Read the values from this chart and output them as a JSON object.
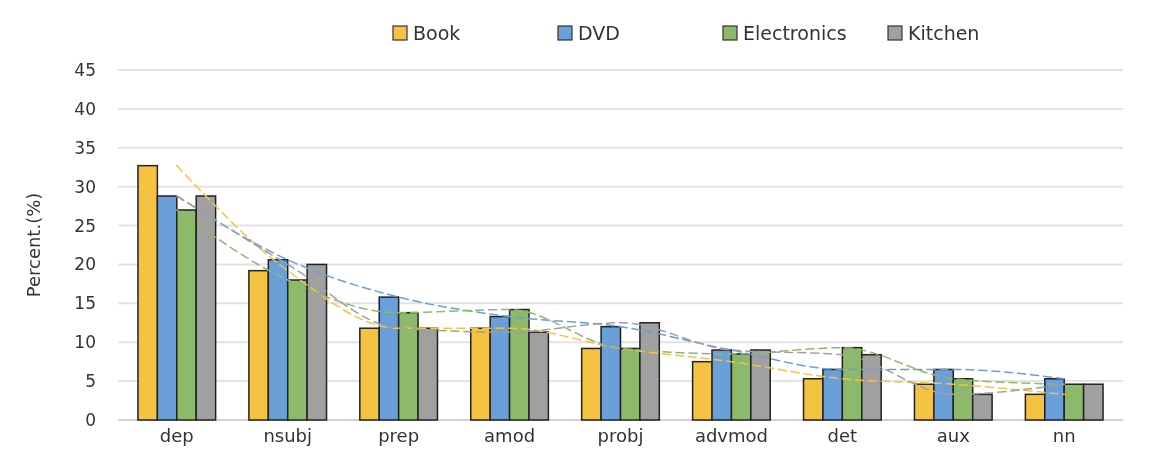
{
  "chart_data": {
    "type": "bar",
    "ylabel": "Percent.(%)",
    "categories": [
      "dep",
      "nsubj",
      "prep",
      "amod",
      "probj",
      "advmod",
      "det",
      "aux",
      "nn"
    ],
    "series": [
      {
        "name": "Book",
        "color": "#f5c342",
        "values": [
          32.7,
          19.2,
          11.8,
          11.8,
          9.2,
          7.5,
          5.3,
          4.6,
          3.3
        ]
      },
      {
        "name": "DVD",
        "color": "#6a9fd8",
        "values": [
          28.8,
          20.6,
          15.8,
          13.3,
          12,
          9,
          6.5,
          6.5,
          5.3
        ]
      },
      {
        "name": "Electronics",
        "color": "#8cba6a",
        "values": [
          27,
          18,
          13.8,
          14.2,
          9.2,
          8.5,
          9.3,
          5.3,
          4.6
        ]
      },
      {
        "name": "Kitchen",
        "color": "#a0a0a0",
        "values": [
          28.8,
          20,
          11.8,
          11.3,
          12.5,
          9,
          8.4,
          3.3,
          4.6
        ]
      },
      {
        "type": "line",
        "color": "#f5c342",
        "line_style": "dashed",
        "values": [
          32.7,
          19.2,
          11.8,
          11.8,
          9.2,
          7.5,
          5.3,
          4.6,
          3.3
        ]
      },
      {
        "type": "line",
        "color": "#6a9fd8",
        "line_style": "dashed",
        "values": [
          28.8,
          20.6,
          15.8,
          13.3,
          12,
          9,
          6.5,
          6.5,
          5.3
        ]
      },
      {
        "type": "line",
        "color": "#8cba6a",
        "line_style": "dashed",
        "values": [
          27,
          18,
          13.8,
          14.2,
          9.2,
          8.5,
          9.3,
          5.3,
          4.6
        ]
      },
      {
        "type": "line",
        "color": "#a0a0a0",
        "line_style": "dashed",
        "values": [
          28.8,
          20,
          11.8,
          11.3,
          12.5,
          9,
          8.4,
          3.3,
          4.6
        ]
      }
    ],
    "ylim": [
      0,
      45
    ],
    "yticks": [
      0,
      5,
      10,
      15,
      20,
      25,
      30,
      35,
      40,
      45
    ],
    "grid": "y",
    "legend": "top"
  }
}
